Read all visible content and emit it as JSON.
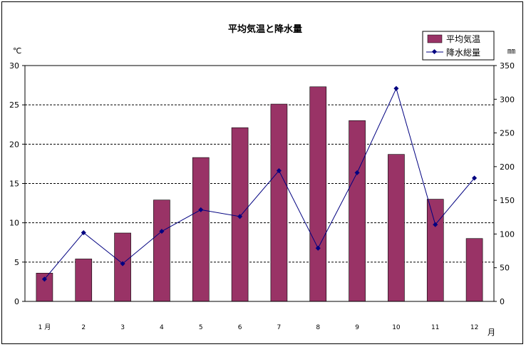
{
  "chart_data": {
    "type": "bar",
    "title": "平均気温と降水量",
    "categories": [
      "1",
      "2",
      "3",
      "4",
      "5",
      "6",
      "7",
      "8",
      "9",
      "10",
      "11",
      "12"
    ],
    "first_category_suffix": "月",
    "x_unit": "月",
    "series": [
      {
        "name": "平均気温",
        "type": "bar",
        "axis": "left",
        "color": "#993366",
        "values": [
          3.6,
          5.4,
          8.7,
          12.9,
          18.3,
          22.1,
          25.1,
          27.3,
          23.0,
          18.7,
          13.0,
          8.0
        ]
      },
      {
        "name": "降水総量",
        "type": "line",
        "axis": "right",
        "color": "#000080",
        "values": [
          33,
          102,
          56,
          104,
          136,
          126,
          194,
          79,
          191,
          316,
          114,
          183
        ]
      }
    ],
    "y_left": {
      "unit": "℃",
      "min": 0,
      "max": 30,
      "step": 5
    },
    "y_right": {
      "unit": "㎜",
      "min": 0,
      "max": 350,
      "step": 50
    },
    "grid": true,
    "legend_position": "top-right"
  }
}
